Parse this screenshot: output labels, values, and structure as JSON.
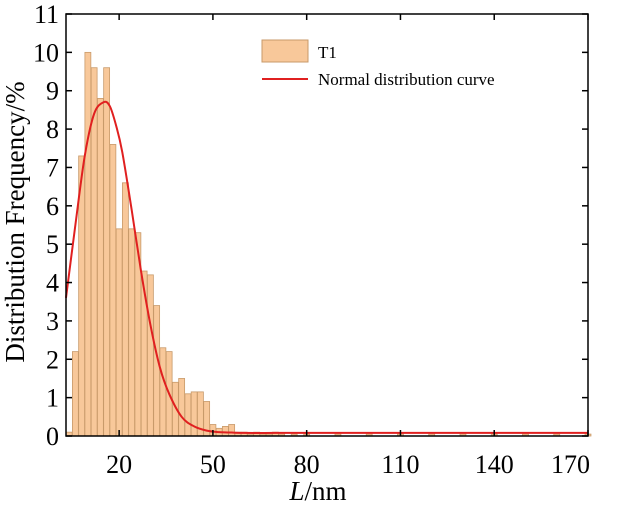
{
  "chart_data": {
    "type": "bar",
    "title": "",
    "ylabel": "Distribution Frequency/%",
    "xlabel_italic": "L",
    "xlabel_rest": "/nm",
    "xlim": [
      3,
      170
    ],
    "ylim": [
      0,
      11
    ],
    "xticks": [
      20,
      50,
      80,
      110,
      140,
      170
    ],
    "yticks": [
      0,
      1,
      2,
      3,
      4,
      5,
      6,
      7,
      8,
      9,
      10,
      11
    ],
    "bar_width": 1.9,
    "colors": {
      "bar_fill": "#f8c89a",
      "bar_stroke": "#c89a6a",
      "curve": "#e02020"
    },
    "legend": {
      "position": "top-right",
      "bar_label": "T1",
      "curve_label": "Normal distribution curve"
    },
    "series": [
      {
        "name": "T1",
        "kind": "bar",
        "x": [
          4,
          6,
          8,
          10,
          12,
          14,
          16,
          18,
          20,
          22,
          24,
          26,
          28,
          30,
          32,
          34,
          36,
          38,
          40,
          42,
          44,
          46,
          48,
          50,
          52,
          54,
          56,
          58,
          60,
          62,
          64,
          66,
          68,
          70,
          72,
          76,
          80,
          90,
          100,
          110,
          120,
          130,
          140,
          150,
          160,
          170
        ],
        "values": [
          0.1,
          2.2,
          7.3,
          10.0,
          9.6,
          8.8,
          9.6,
          7.6,
          5.4,
          6.6,
          5.4,
          5.3,
          4.3,
          4.2,
          3.4,
          2.3,
          2.2,
          1.4,
          1.5,
          1.1,
          1.15,
          1.15,
          0.9,
          0.3,
          0.2,
          0.25,
          0.3,
          0.1,
          0.1,
          0.05,
          0.1,
          0.05,
          0.05,
          0.1,
          0.05,
          0.05,
          0.05,
          0.05,
          0.05,
          0.05,
          0.05,
          0.05,
          0.05,
          0.05,
          0.05,
          0.05
        ]
      },
      {
        "name": "Normal distribution curve",
        "kind": "line",
        "x": [
          3,
          6,
          9,
          12,
          15,
          17,
          19,
          21,
          24,
          27,
          30,
          33,
          36,
          40,
          44,
          48,
          52,
          56,
          60,
          70,
          80,
          90,
          110,
          130,
          150,
          170
        ],
        "values": [
          3.6,
          5.5,
          7.3,
          8.4,
          8.7,
          8.6,
          8.1,
          7.4,
          5.9,
          4.3,
          2.9,
          1.8,
          1.1,
          0.5,
          0.25,
          0.14,
          0.1,
          0.09,
          0.08,
          0.08,
          0.08,
          0.08,
          0.08,
          0.08,
          0.08,
          0.08
        ]
      }
    ]
  }
}
